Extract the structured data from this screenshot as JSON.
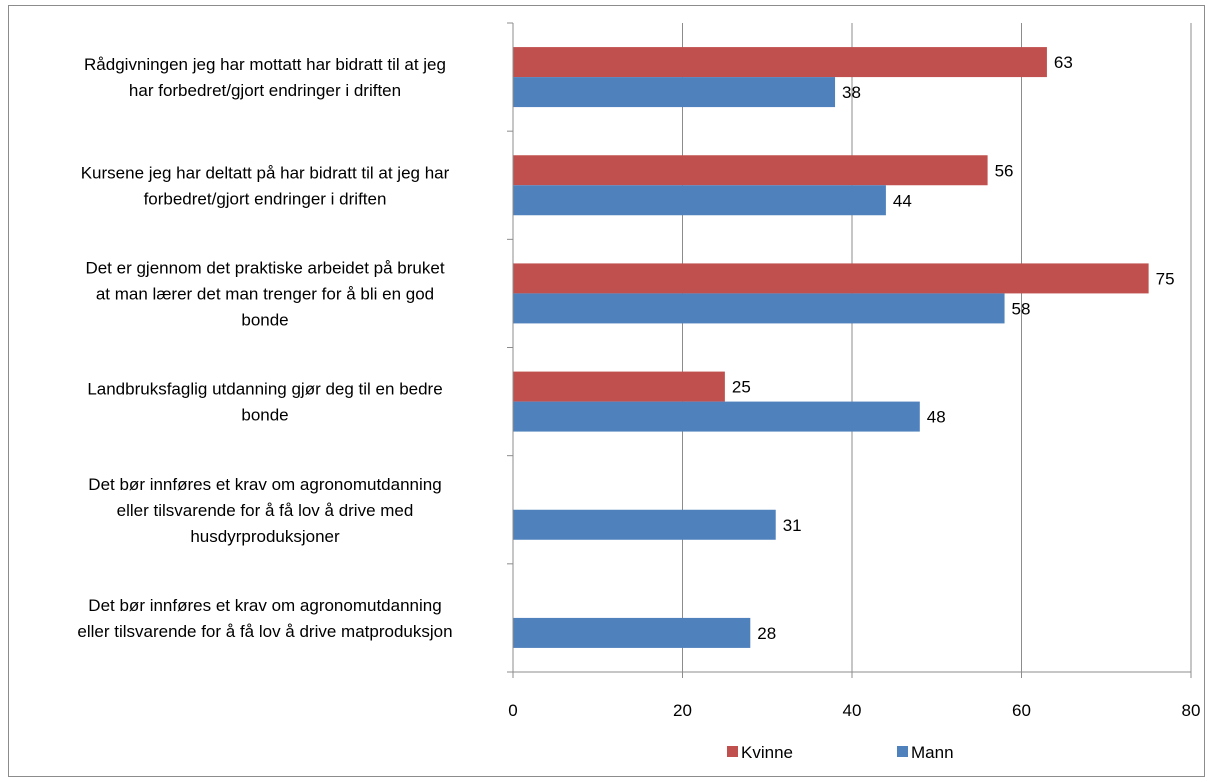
{
  "chart_data": {
    "type": "bar",
    "orientation": "horizontal",
    "categories": [
      [
        "Rådgivningen jeg har mottatt har bidratt til at jeg",
        "har forbedret/gjort endringer i driften"
      ],
      [
        "Kursene jeg har deltatt på har bidratt til at jeg har",
        "forbedret/gjort endringer i driften"
      ],
      [
        "Det er gjennom det praktiske arbeidet på bruket",
        "at man lærer det man trenger for å bli en god",
        "bonde"
      ],
      [
        "Landbruksfaglig utdanning gjør deg til en bedre",
        "bonde"
      ],
      [
        "Det bør innføres et krav om agronomutdanning",
        "eller tilsvarende for å få lov å drive med",
        "husdyrproduksjoner"
      ],
      [
        "Det bør innføres et krav om agronomutdanning",
        "eller tilsvarende for å få lov å drive matproduksjon"
      ]
    ],
    "series": [
      {
        "name": "Kvinne",
        "color": "#c0504d",
        "values": [
          63,
          56,
          75,
          25,
          null,
          null
        ],
        "labels": [
          "63",
          "56",
          "75",
          "25",
          "",
          ""
        ]
      },
      {
        "name": "Mann",
        "color": "#4f81bd",
        "values": [
          38,
          44,
          58,
          48,
          31,
          28
        ],
        "labels": [
          "38",
          "44",
          "58",
          "48",
          "31",
          "28"
        ]
      }
    ],
    "xlim": [
      0,
      80
    ],
    "xticks": [
      "0",
      "20",
      "40",
      "60",
      "80"
    ],
    "xtick_values": [
      0,
      20,
      40,
      60,
      80
    ],
    "grid": true,
    "legend_position": "bottom",
    "title": "",
    "xlabel": "",
    "ylabel": ""
  }
}
